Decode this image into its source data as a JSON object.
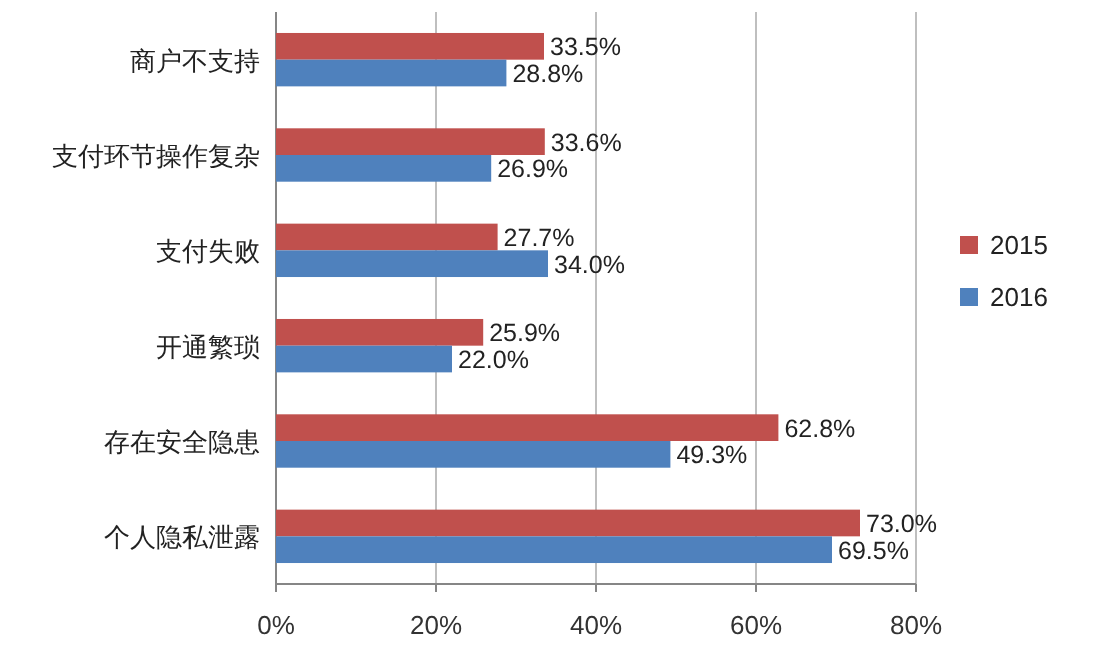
{
  "chart_data": {
    "type": "bar",
    "orientation": "horizontal",
    "categories": [
      "商户不支持",
      "支付环节操作复杂",
      "支付失败",
      "开通繁琐",
      "存在安全隐患",
      "个人隐私泄露"
    ],
    "series": [
      {
        "name": "2015",
        "color": "#c0504d",
        "values": [
          33.5,
          33.6,
          27.7,
          25.9,
          62.8,
          73.0
        ],
        "value_labels": [
          "33.5%",
          "33.6%",
          "27.7%",
          "25.9%",
          "62.8%",
          "73.0%"
        ]
      },
      {
        "name": "2016",
        "color": "#4f81bd",
        "values": [
          28.8,
          26.9,
          34.0,
          22.0,
          49.3,
          69.5
        ],
        "value_labels": [
          "28.8%",
          "26.9%",
          "34.0%",
          "22.0%",
          "49.3%",
          "69.5%"
        ]
      }
    ],
    "xlim": [
      0,
      80
    ],
    "xticks": [
      {
        "value": 0,
        "label": "0%"
      },
      {
        "value": 20,
        "label": "20%"
      },
      {
        "value": 40,
        "label": "40%"
      },
      {
        "value": 60,
        "label": "60%"
      },
      {
        "value": 80,
        "label": "80%"
      }
    ],
    "grid": "x",
    "legend": "right"
  }
}
